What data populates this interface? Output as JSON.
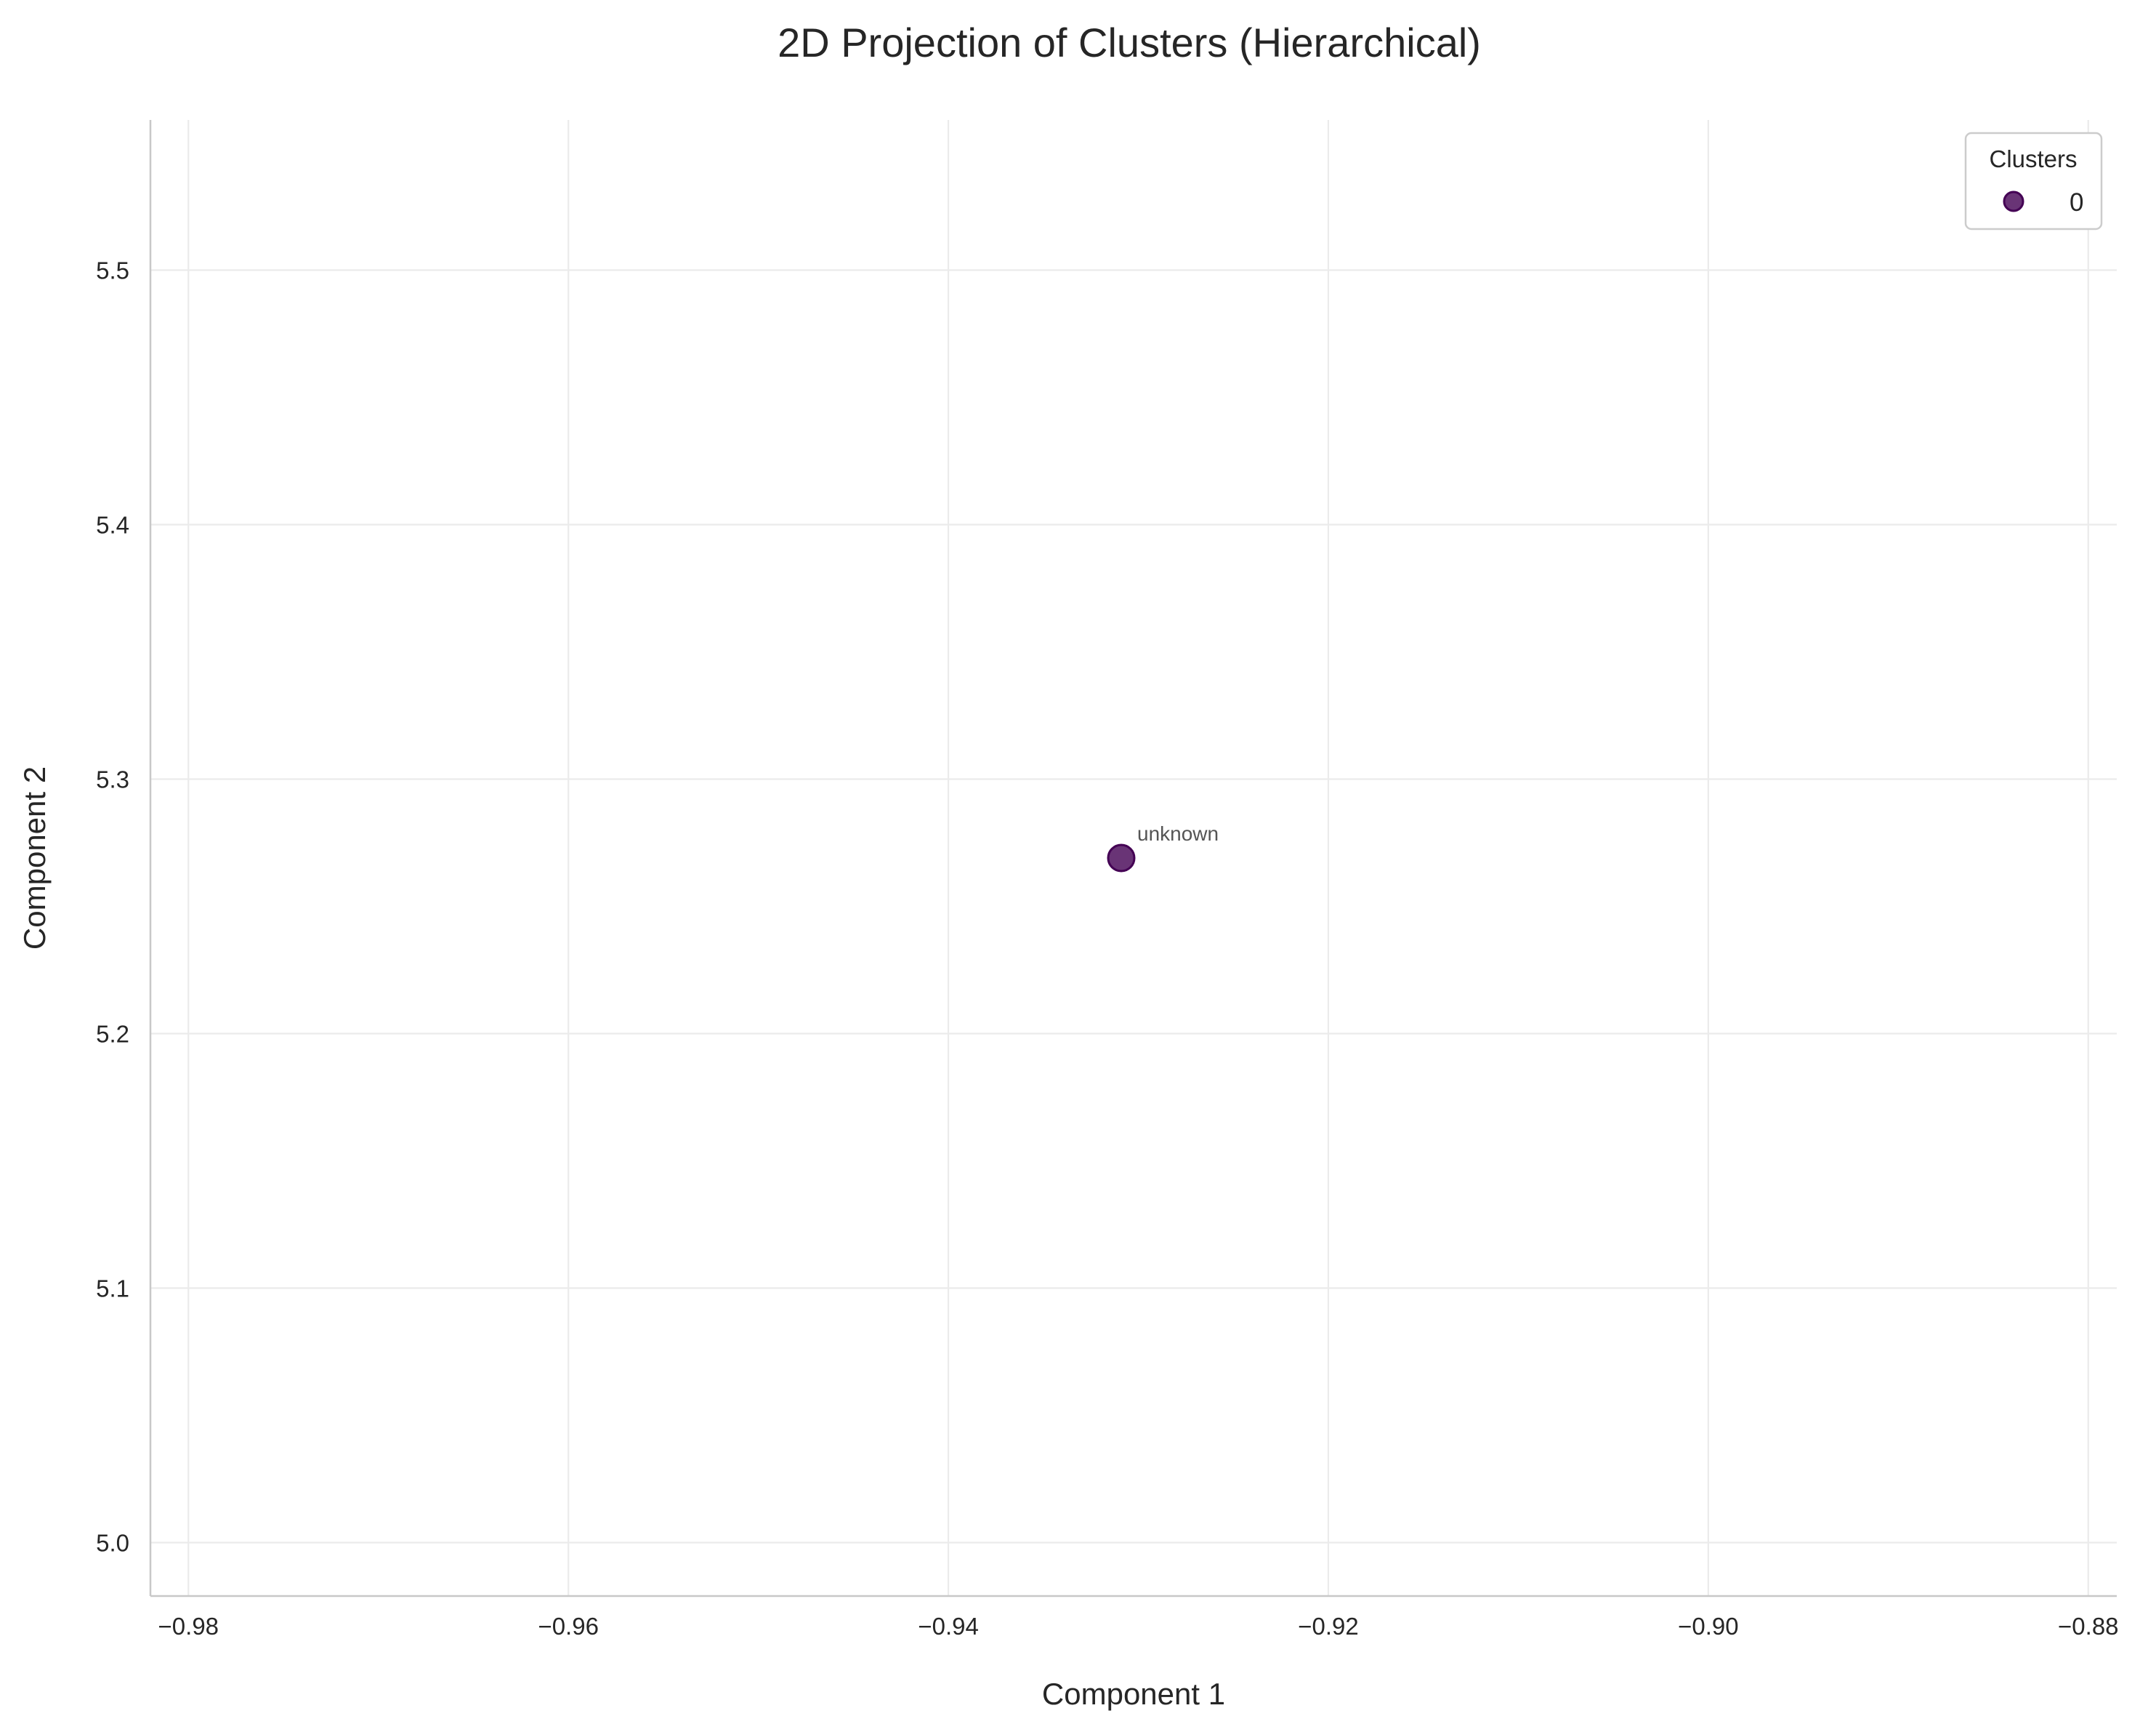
{
  "chart_data": {
    "type": "scatter",
    "title": "2D Projection of Clusters (Hierarchical)",
    "xlabel": "Component 1",
    "ylabel": "Component 2",
    "xlim": [
      -0.982,
      -0.8785
    ],
    "ylim": [
      4.979,
      5.559
    ],
    "x_ticks": [
      -0.98,
      -0.96,
      -0.94,
      -0.92,
      -0.9,
      -0.88
    ],
    "x_tick_labels": [
      "−0.98",
      "−0.96",
      "−0.94",
      "−0.92",
      "−0.90",
      "−0.88"
    ],
    "y_ticks": [
      5.0,
      5.1,
      5.2,
      5.3,
      5.4,
      5.5
    ],
    "y_tick_labels": [
      "5.0",
      "5.1",
      "5.2",
      "5.3",
      "5.4",
      "5.5"
    ],
    "grid": true,
    "legend": {
      "title": "Clusters",
      "placement": "top-right",
      "entries": [
        {
          "label": "0",
          "color": "#440154"
        }
      ]
    },
    "series": [
      {
        "name": "0",
        "color": "#440154",
        "points": [
          {
            "x": -0.9309,
            "y": 5.269,
            "label": "unknown"
          }
        ]
      }
    ]
  }
}
